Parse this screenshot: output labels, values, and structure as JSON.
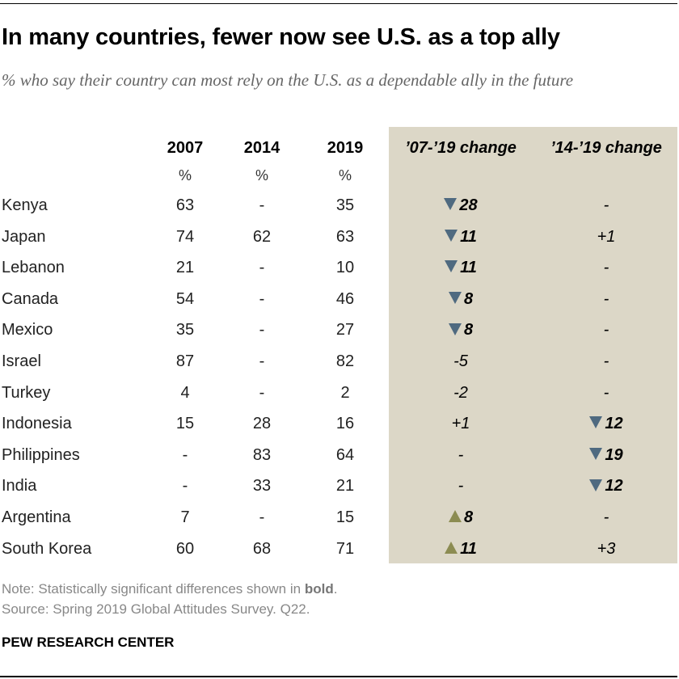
{
  "title": "In many countries, fewer now see U.S. as a top ally",
  "subtitle": "% who say their country can most rely on the U.S. as a dependable ally in the future",
  "chart_data": {
    "type": "table",
    "columns": [
      "2007",
      "2014",
      "2019",
      "’07-’19 change",
      "’14-’19 change"
    ],
    "units": [
      "%",
      "%",
      "%"
    ],
    "colors": {
      "decrease": "#4f6a80",
      "increase": "#8c8c52",
      "panel": "#dcd7c7"
    },
    "rows": [
      {
        "country": "Kenya",
        "v2007": "63",
        "v2014": "-",
        "v2019": "35",
        "c07": {
          "dir": "down",
          "text": "28",
          "bold": true
        },
        "c14": {
          "dir": "",
          "text": "-",
          "bold": false
        }
      },
      {
        "country": "Japan",
        "v2007": "74",
        "v2014": "62",
        "v2019": "63",
        "c07": {
          "dir": "down",
          "text": "11",
          "bold": true
        },
        "c14": {
          "dir": "",
          "text": "+1",
          "bold": false
        }
      },
      {
        "country": "Lebanon",
        "v2007": "21",
        "v2014": "-",
        "v2019": "10",
        "c07": {
          "dir": "down",
          "text": "11",
          "bold": true
        },
        "c14": {
          "dir": "",
          "text": "-",
          "bold": false
        }
      },
      {
        "country": "Canada",
        "v2007": "54",
        "v2014": "-",
        "v2019": "46",
        "c07": {
          "dir": "down",
          "text": "8",
          "bold": true
        },
        "c14": {
          "dir": "",
          "text": "-",
          "bold": false
        }
      },
      {
        "country": "Mexico",
        "v2007": "35",
        "v2014": "-",
        "v2019": "27",
        "c07": {
          "dir": "down",
          "text": "8",
          "bold": true
        },
        "c14": {
          "dir": "",
          "text": "-",
          "bold": false
        }
      },
      {
        "country": "Israel",
        "v2007": "87",
        "v2014": "-",
        "v2019": "82",
        "c07": {
          "dir": "",
          "text": "-5",
          "bold": false
        },
        "c14": {
          "dir": "",
          "text": "-",
          "bold": false
        }
      },
      {
        "country": "Turkey",
        "v2007": "4",
        "v2014": "-",
        "v2019": "2",
        "c07": {
          "dir": "",
          "text": "-2",
          "bold": false
        },
        "c14": {
          "dir": "",
          "text": "-",
          "bold": false
        }
      },
      {
        "country": "Indonesia",
        "v2007": "15",
        "v2014": "28",
        "v2019": "16",
        "c07": {
          "dir": "",
          "text": "+1",
          "bold": false
        },
        "c14": {
          "dir": "down",
          "text": "12",
          "bold": true
        }
      },
      {
        "country": "Philippines",
        "v2007": "-",
        "v2014": "83",
        "v2019": "64",
        "c07": {
          "dir": "",
          "text": "-",
          "bold": false
        },
        "c14": {
          "dir": "down",
          "text": "19",
          "bold": true
        }
      },
      {
        "country": "India",
        "v2007": "-",
        "v2014": "33",
        "v2019": "21",
        "c07": {
          "dir": "",
          "text": "-",
          "bold": false
        },
        "c14": {
          "dir": "down",
          "text": "12",
          "bold": true
        }
      },
      {
        "country": "Argentina",
        "v2007": "7",
        "v2014": "-",
        "v2019": "15",
        "c07": {
          "dir": "up",
          "text": "8",
          "bold": true
        },
        "c14": {
          "dir": "",
          "text": "-",
          "bold": false
        }
      },
      {
        "country": "South Korea",
        "v2007": "60",
        "v2014": "68",
        "v2019": "71",
        "c07": {
          "dir": "up",
          "text": "11",
          "bold": true
        },
        "c14": {
          "dir": "",
          "text": "+3",
          "bold": false
        }
      }
    ]
  },
  "note_prefix": "Note: Statistically significant differences shown in ",
  "note_bold": "bold",
  "note_suffix": ".",
  "source": "Source: Spring 2019 Global Attitudes Survey. Q22.",
  "brand": "PEW RESEARCH CENTER"
}
